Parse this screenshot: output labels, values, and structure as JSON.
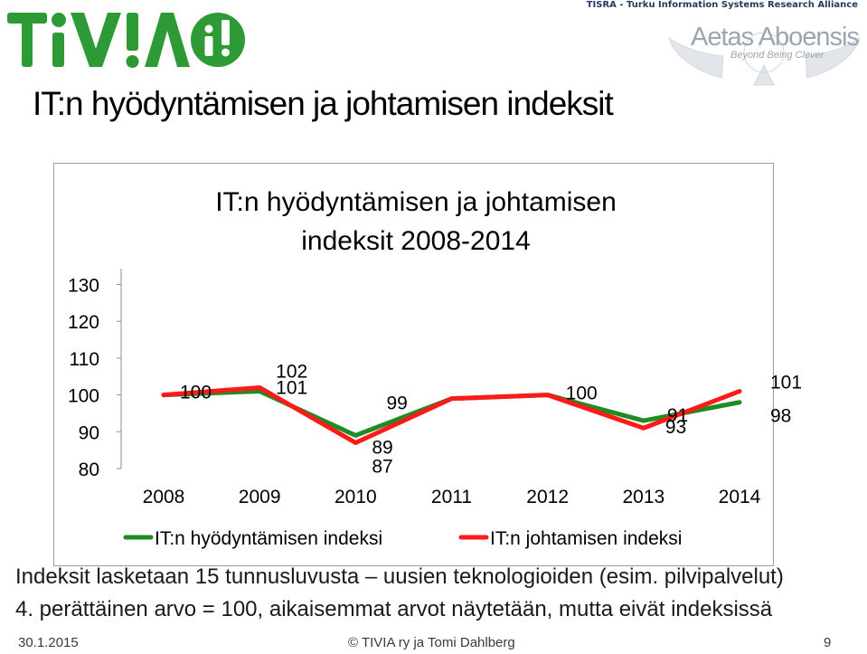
{
  "header": {
    "logo_text": "TiVi!A",
    "alliance_text": "TISRA - Turku Information Systems Research Alliance",
    "aetas_name": "Aetas Aboensis",
    "aetas_tagline": "Beyond Being Clever"
  },
  "slide": {
    "title": "IT:n hyödyntämisen ja johtamisen indeksit"
  },
  "chart_data": {
    "type": "line",
    "title_lines": [
      "IT:n hyödyntämisen ja johtamisen",
      "indeksit 2008-2014"
    ],
    "x": [
      "2008",
      "2009",
      "2010",
      "2011",
      "2012",
      "2013",
      "2014"
    ],
    "y_ticks": [
      "80",
      "90",
      "100",
      "110",
      "120",
      "130"
    ],
    "ylim": [
      80,
      130
    ],
    "grid": false,
    "legend_position": "bottom",
    "series": [
      {
        "name": "IT:n hyödyntämisen indeksi",
        "color": "#1e8c22",
        "values": [
          100,
          101,
          89,
          99,
          100,
          93,
          98
        ],
        "labels": [
          "100",
          "101",
          "89",
          "99",
          "100",
          "93",
          "98"
        ]
      },
      {
        "name": "IT:n johtamisen indeksi",
        "color": "#ff1a1a",
        "values": [
          100,
          102,
          87,
          99,
          100,
          91,
          101
        ],
        "labels": [
          "",
          "102",
          "87",
          "",
          "",
          "91",
          "101"
        ]
      }
    ]
  },
  "notes": {
    "line1": "Indeksit lasketaan 15 tunnusluvusta – uusien teknologioiden (esim. pilvipalvelut)",
    "line2": "4. perättäinen arvo = 100, aikaisemmat arvot näytetään, mutta eivät indeksissä"
  },
  "footer": {
    "date": "30.1.2015",
    "copyright": "©   TIVIA ry ja Tomi Dahlberg",
    "page": "9"
  }
}
